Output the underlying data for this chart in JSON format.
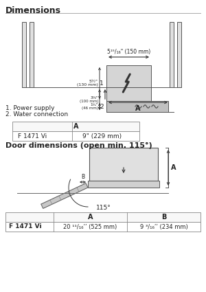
{
  "title": "Dimensions",
  "section2_title": "Door dimensions (open min. 115°)",
  "notes": [
    "1. Power supply",
    "2. Water connection"
  ],
  "table1_header": [
    "A"
  ],
  "table1_rows": [
    [
      "F 1471 Vi",
      "9\" (229 mm)"
    ]
  ],
  "table2_header": [
    "",
    "A",
    "B"
  ],
  "table2_rows": [
    [
      "F 1471 Vi",
      "20 ¹¹/₁₆’’ (525 mm)",
      "9 ³/₁₆’’ (234 mm)"
    ]
  ],
  "dim_label_top": "5¹⁵/₁₆\" (150 mm)",
  "bg_color": "#ffffff",
  "line_color": "#333333",
  "text_color": "#222222"
}
